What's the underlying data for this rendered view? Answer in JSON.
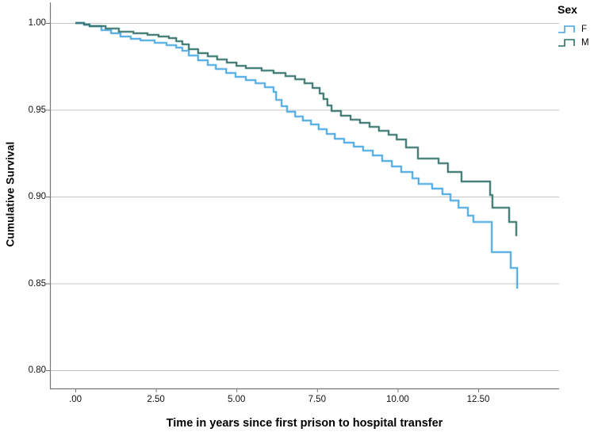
{
  "legend": {
    "title": "Sex",
    "entries": [
      {
        "label": "F",
        "color": "#45a5e0"
      },
      {
        "label": "M",
        "color": "#2d6d66"
      }
    ]
  },
  "chart_data": {
    "type": "line",
    "subtype": "kaplan-meier-step",
    "title": "",
    "xlabel": "Time in years since first prison to hospital transfer",
    "ylabel": "Cumulative Survival",
    "xlim": [
      -0.79,
      15.0
    ],
    "ylim": [
      0.789,
      1.011
    ],
    "grid": "horizontal",
    "legend_position": "top-right",
    "legend_title": "Sex",
    "xticks": [
      ".00",
      "2.50",
      "5.00",
      "7.50",
      "10.00",
      "12.50"
    ],
    "xtick_values": [
      0,
      2.5,
      5,
      7.5,
      10,
      12.5
    ],
    "yticks": [
      "1.00",
      "0.95",
      "0.90",
      "0.85",
      "0.80"
    ],
    "ytick_values": [
      1.0,
      0.95,
      0.9,
      0.85,
      0.8
    ],
    "colors": {
      "grid": "#c4c4c4",
      "axis": "#757575",
      "text": "#000000",
      "background": "#ffffff"
    },
    "series": [
      {
        "name": "F",
        "color": "#45a5e0",
        "points": [
          [
            0,
            1.0
          ],
          [
            0.27,
            0.9991
          ],
          [
            0.44,
            0.9982
          ],
          [
            0.81,
            0.9959
          ],
          [
            1.11,
            0.9941
          ],
          [
            1.4,
            0.9922
          ],
          [
            1.72,
            0.9909
          ],
          [
            2.02,
            0.99
          ],
          [
            2.46,
            0.9886
          ],
          [
            2.83,
            0.9872
          ],
          [
            3.13,
            0.9858
          ],
          [
            3.32,
            0.984
          ],
          [
            3.52,
            0.9813
          ],
          [
            3.81,
            0.9785
          ],
          [
            4.11,
            0.9758
          ],
          [
            4.36,
            0.9735
          ],
          [
            4.68,
            0.9712
          ],
          [
            4.97,
            0.969
          ],
          [
            5.29,
            0.9671
          ],
          [
            5.59,
            0.9653
          ],
          [
            5.88,
            0.963
          ],
          [
            6.15,
            0.9603
          ],
          [
            6.23,
            0.9557
          ],
          [
            6.4,
            0.9521
          ],
          [
            6.57,
            0.9489
          ],
          [
            6.82,
            0.9461
          ],
          [
            7.06,
            0.9438
          ],
          [
            7.31,
            0.9416
          ],
          [
            7.55,
            0.9388
          ],
          [
            7.8,
            0.9361
          ],
          [
            8.05,
            0.9333
          ],
          [
            8.34,
            0.9311
          ],
          [
            8.64,
            0.9288
          ],
          [
            8.93,
            0.9265
          ],
          [
            9.23,
            0.9237
          ],
          [
            9.52,
            0.9205
          ],
          [
            9.82,
            0.9174
          ],
          [
            10.11,
            0.9142
          ],
          [
            10.46,
            0.9105
          ],
          [
            10.65,
            0.9073
          ],
          [
            11.07,
            0.9046
          ],
          [
            11.39,
            0.9014
          ],
          [
            11.64,
            0.8977
          ],
          [
            11.89,
            0.8936
          ],
          [
            12.18,
            0.889
          ],
          [
            12.35,
            0.8854
          ],
          [
            12.92,
            0.868
          ],
          [
            13.51,
            0.8589
          ],
          [
            13.71,
            0.847
          ]
        ]
      },
      {
        "name": "M",
        "color": "#2d6d66",
        "points": [
          [
            0,
            1.0
          ],
          [
            0.27,
            0.9991
          ],
          [
            0.44,
            0.9982
          ],
          [
            0.94,
            0.9968
          ],
          [
            1.35,
            0.995
          ],
          [
            1.8,
            0.9941
          ],
          [
            2.24,
            0.9932
          ],
          [
            2.58,
            0.9922
          ],
          [
            2.9,
            0.9913
          ],
          [
            3.13,
            0.9895
          ],
          [
            3.32,
            0.9877
          ],
          [
            3.52,
            0.9849
          ],
          [
            3.81,
            0.9826
          ],
          [
            4.11,
            0.9808
          ],
          [
            4.4,
            0.979
          ],
          [
            4.7,
            0.9772
          ],
          [
            5.0,
            0.9753
          ],
          [
            5.29,
            0.974
          ],
          [
            5.78,
            0.9726
          ],
          [
            6.15,
            0.9712
          ],
          [
            6.52,
            0.9694
          ],
          [
            6.82,
            0.9676
          ],
          [
            7.11,
            0.9653
          ],
          [
            7.36,
            0.9626
          ],
          [
            7.58,
            0.9594
          ],
          [
            7.7,
            0.9562
          ],
          [
            7.82,
            0.9525
          ],
          [
            7.95,
            0.9493
          ],
          [
            8.24,
            0.9466
          ],
          [
            8.54,
            0.9443
          ],
          [
            8.83,
            0.9425
          ],
          [
            9.13,
            0.9402
          ],
          [
            9.42,
            0.9379
          ],
          [
            9.72,
            0.9356
          ],
          [
            9.97,
            0.9329
          ],
          [
            10.26,
            0.9283
          ],
          [
            10.63,
            0.9219
          ],
          [
            11.27,
            0.9192
          ],
          [
            11.56,
            0.9142
          ],
          [
            11.98,
            0.9087
          ],
          [
            12.87,
            0.9009
          ],
          [
            12.94,
            0.8936
          ],
          [
            13.46,
            0.8854
          ],
          [
            13.68,
            0.8772
          ]
        ]
      }
    ]
  }
}
